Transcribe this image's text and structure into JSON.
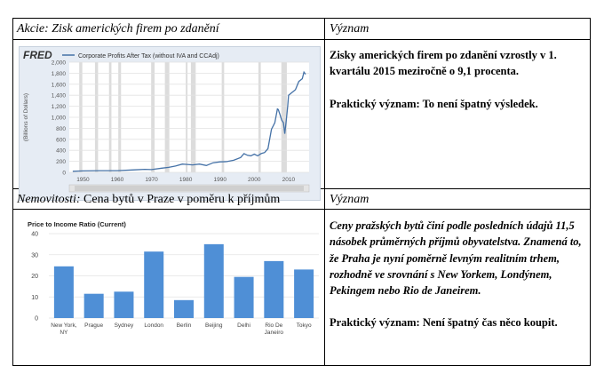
{
  "row1": {
    "header_left_prefix": "Akcie:",
    "header_left_rest": " Zisk amerických firem po zdanění",
    "header_right": "Význam",
    "text1": "Zisky amerických firem po zdanění vzrostly v 1. kvartálu 2015 meziročně o 9,1 procenta.",
    "text2": "Praktický význam: To není špatný výsledek."
  },
  "row2": {
    "header_left_prefix": "Nemovitosti:",
    "header_left_rest": " Cena bytů v Praze v poměru k příjmům",
    "header_right": "Význam",
    "text1": "Ceny pražských bytů činí podle posledních údajů 11,5 násobek průměrných příjmů obyvatelstva. Znamená to, že Praha je nyní poměrně levným realitním trhem, rozhodně ve srovnání s New Yorkem, Londýnem, Pekingem nebo Rio de Janeirem.",
    "text2": "Praktický význam: Není špatný čas něco koupit."
  },
  "chart_data": [
    {
      "type": "line",
      "logo": "FRED",
      "legend": "Corporate Profits After Tax (without IVA and CCAdj)",
      "ylabel": "(Billions of Dollars)",
      "xlim": [
        1946,
        2016
      ],
      "ylim": [
        0,
        2000
      ],
      "yticks": [
        0,
        200,
        400,
        600,
        800,
        1000,
        1200,
        1400,
        1600,
        1800,
        2000
      ],
      "xticks": [
        1950,
        1960,
        1970,
        1980,
        1990,
        2000,
        2010
      ],
      "shaded_recessions": true,
      "grid": true,
      "line_color": "#4572a7",
      "x": [
        1947,
        1950,
        1955,
        1960,
        1965,
        1968,
        1970,
        1973,
        1975,
        1977,
        1979,
        1980,
        1982,
        1984,
        1986,
        1988,
        1990,
        1992,
        1994,
        1996,
        1997,
        1998,
        1999,
        2000,
        2001,
        2002,
        2003,
        2004,
        2005,
        2006,
        2006.75,
        2007,
        2007.5,
        2008,
        2008.5,
        2008.9,
        2009.25,
        2009.75,
        2010,
        2011,
        2012,
        2013,
        2014,
        2014.5,
        2015
      ],
      "y": [
        20,
        25,
        30,
        30,
        45,
        55,
        50,
        75,
        90,
        115,
        150,
        145,
        135,
        150,
        125,
        175,
        190,
        195,
        220,
        270,
        340,
        310,
        300,
        330,
        300,
        340,
        360,
        430,
        780,
        900,
        1150,
        1140,
        1050,
        950,
        900,
        700,
        900,
        1200,
        1400,
        1450,
        1500,
        1650,
        1700,
        1820,
        1780
      ]
    },
    {
      "type": "bar",
      "title": "Price to Income Ratio (Current)",
      "categories": [
        "New York, NY",
        "Prague",
        "Sydney",
        "London",
        "Berlin",
        "Beijing",
        "Delhi",
        "Rio De Janeiro",
        "Tokyo"
      ],
      "values": [
        24.5,
        11.5,
        12.5,
        31.5,
        8.5,
        35,
        19.5,
        27,
        23
      ],
      "ylim": [
        0,
        40
      ],
      "yticks": [
        0,
        10,
        20,
        30,
        40
      ],
      "grid": true,
      "bar_color": "#4f8fd6"
    }
  ]
}
